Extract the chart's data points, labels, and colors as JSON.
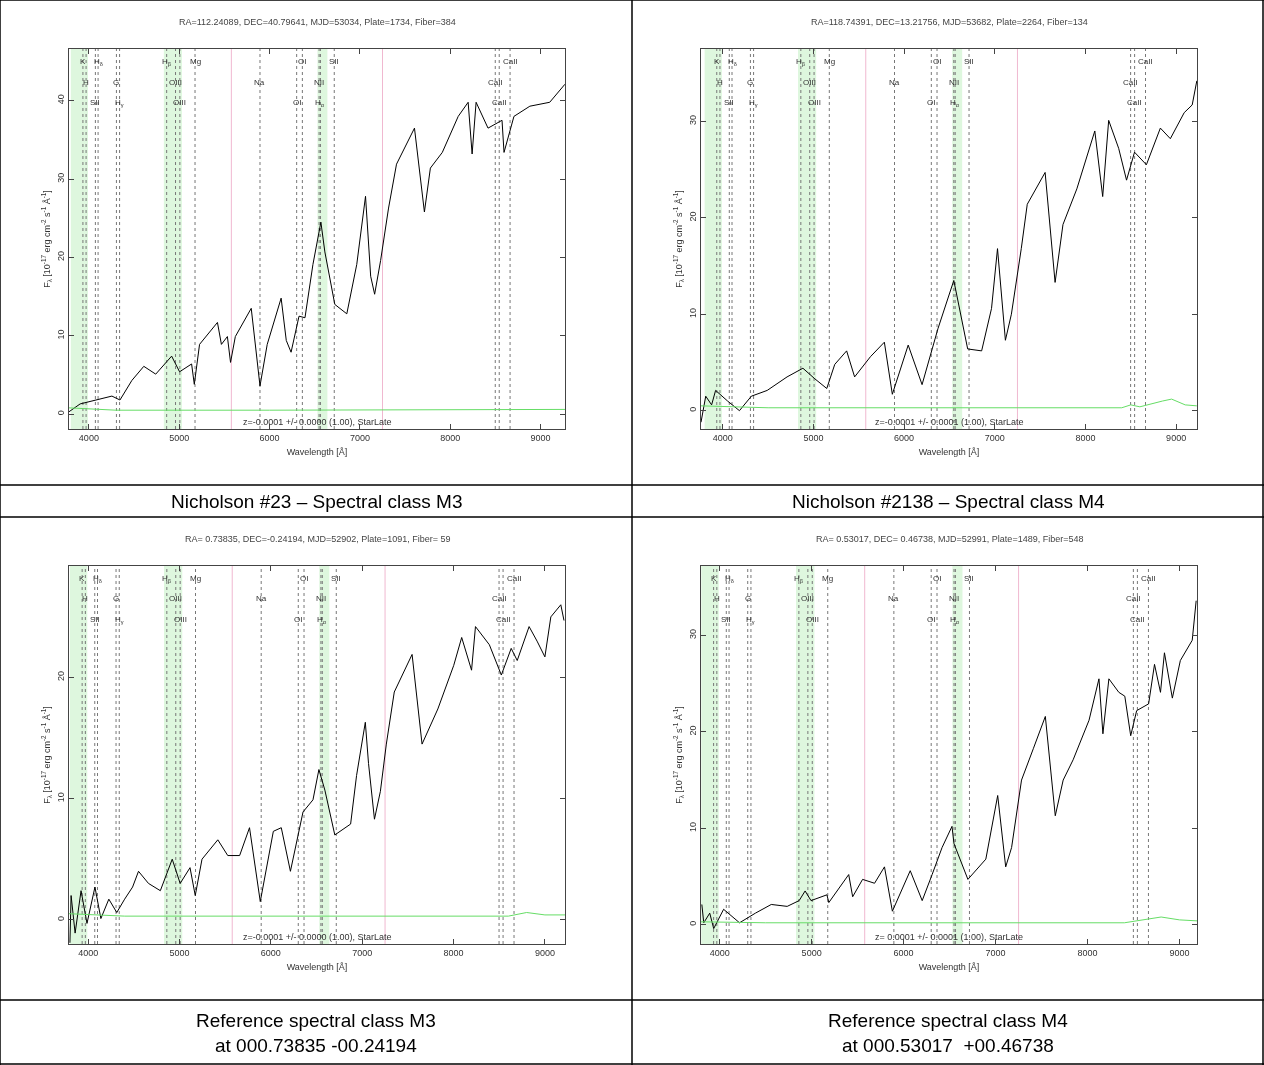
{
  "chart_data": [
    {
      "type": "line",
      "title": "RA=112.24089, DEC=40.79641, MJD=53034, Plate=1734, Fiber=384",
      "xlabel": "Wavelength [Å]",
      "ylabel": "F$_{λ}$ [10$^{-17}$ erg cm$^{-2}$ s$^{-1}$ Å$^{-1}$]",
      "annotations": [
        "z=-0.0001 +/- 0.0000 (1.00), StarLate",
        "Nicholson #23 – Spectral class M3"
      ],
      "xlim": [
        3780,
        9270
      ],
      "xticks": [
        4000,
        5000,
        6000,
        7000,
        8000,
        9000
      ],
      "ylim": [
        -1.9,
        46.6
      ],
      "yticks": [
        0,
        10,
        20,
        30,
        40
      ],
      "series": [
        {
          "color": "#000000",
          "x": [
            3780,
            3903,
            4079,
            4255,
            4344,
            4476,
            4608,
            4740,
            4916,
            5004,
            5137,
            5167,
            5225,
            5423,
            5467,
            5533,
            5568,
            5621,
            5797,
            5894,
            5974,
            6128,
            6185,
            6238,
            6326,
            6392,
            6480,
            6568,
            6612,
            6722,
            6855,
            6965,
            7062,
            7119,
            7163,
            7229,
            7317,
            7405,
            7604,
            7714,
            7780,
            7912,
            8088,
            8198,
            8242,
            8286,
            8418,
            8573,
            8595,
            8705,
            8881,
            9101,
            9269
          ],
          "values": [
            0.3,
            1.3,
            1.8,
            2.3,
            1.8,
            4.3,
            6.1,
            5.1,
            7.4,
            5.4,
            6.4,
            3.8,
            8.9,
            11.7,
            8.9,
            9.9,
            6.6,
            9.9,
            13.5,
            3.6,
            8.9,
            14.8,
            9.4,
            7.9,
            12.5,
            12.3,
            19.1,
            24.5,
            20.7,
            14.0,
            12.8,
            19.1,
            27.8,
            17.6,
            15.3,
            19.6,
            26.3,
            31.9,
            36.5,
            25.8,
            31.4,
            33.4,
            38.0,
            39.8,
            33.2,
            39.8,
            36.5,
            37.5,
            33.4,
            38.0,
            39.3,
            39.8,
            42.1
          ]
        },
        {
          "color": "#66dd66",
          "x": [
            3780,
            4300,
            6000,
            9270
          ],
          "values": [
            0.8,
            0.5,
            0.5,
            0.6
          ]
        }
      ],
      "bands": [
        {
          "axis": "x",
          "from": 3800,
          "to": 3990,
          "color": "#d6f5d6"
        },
        {
          "axis": "x",
          "from": 4830,
          "to": 5030,
          "color": "#d6f5d6"
        },
        {
          "axis": "x",
          "from": 6530,
          "to": 6640,
          "color": "#d6f5d6"
        }
      ],
      "ref_lines": [
        {
          "axis": "x",
          "value": 3934,
          "label": "K",
          "line_style": "dotted",
          "color": "#777777"
        },
        {
          "axis": "x",
          "value": 3969,
          "label": "H",
          "line_style": "dotted",
          "color": "#777777"
        },
        {
          "axis": "x",
          "value": 4072,
          "label": "SII",
          "line_style": "dotted",
          "color": "#777777"
        },
        {
          "axis": "x",
          "value": 4102,
          "label": "H$_{δ}$",
          "line_style": "dotted",
          "color": "#777777"
        },
        {
          "axis": "x",
          "value": 4305,
          "label": "G",
          "line_style": "dotted",
          "color": "#777777"
        },
        {
          "axis": "x",
          "value": 4340,
          "label": "H$_{γ}$",
          "line_style": "dotted",
          "color": "#777777"
        },
        {
          "axis": "x",
          "value": 4861,
          "label": "H$_{β}$",
          "line_style": "dotted",
          "color": "#777777"
        },
        {
          "axis": "x",
          "value": 4959,
          "label": "OIII",
          "line_style": "dotted",
          "color": "#777777"
        },
        {
          "axis": "x",
          "value": 5007,
          "label": "OIII",
          "line_style": "dotted",
          "color": "#777777"
        },
        {
          "axis": "x",
          "value": 5175,
          "label": "Mg",
          "line_style": "dotted",
          "color": "#777777"
        },
        {
          "axis": "x",
          "value": 5577,
          "line_style": "solid",
          "color": "#f0b8d0"
        },
        {
          "axis": "x",
          "value": 5894,
          "label": "Na",
          "line_style": "dotted",
          "color": "#777777"
        },
        {
          "axis": "x",
          "value": 6300,
          "label": "OI",
          "line_style": "dotted",
          "color": "#777777"
        },
        {
          "axis": "x",
          "value": 6363,
          "label": "OI",
          "line_style": "dotted",
          "color": "#777777"
        },
        {
          "axis": "x",
          "value": 6548,
          "label": "NII",
          "line_style": "dotted",
          "color": "#777777"
        },
        {
          "axis": "x",
          "value": 6563,
          "label": "H$_{α}$",
          "line_style": "dotted",
          "color": "#777777"
        },
        {
          "axis": "x",
          "value": 6716,
          "label": "SII",
          "line_style": "dotted",
          "color": "#777777"
        },
        {
          "axis": "x",
          "value": 7250,
          "line_style": "solid",
          "color": "#f0b8d0"
        },
        {
          "axis": "x",
          "value": 8498,
          "label": "CaII",
          "line_style": "dotted",
          "color": "#777777"
        },
        {
          "axis": "x",
          "value": 8542,
          "label": "CaII",
          "line_style": "dotted",
          "color": "#777777"
        },
        {
          "axis": "x",
          "value": 8662,
          "label": "CaII",
          "line_style": "dotted",
          "color": "#777777"
        }
      ]
    },
    {
      "type": "line",
      "title": "RA=118.74391, DEC=13.21756, MJD=53682, Plate=2264, Fiber=134",
      "xlabel": "Wavelength [Å]",
      "ylabel": "F$_{λ}$ [10$^{-17}$ erg cm$^{-2}$ s$^{-1}$ Å$^{-1}$]",
      "annotations": [
        "z=-0.0001 +/- 0.0001 (1.00), StarLate",
        "Nicholson #2138 – Spectral class M4"
      ],
      "xlim": [
        3760,
        9230
      ],
      "xticks": [
        4000,
        5000,
        6000,
        7000,
        8000,
        9000
      ],
      "ylim": [
        -1.9,
        37.5
      ],
      "yticks": [
        0,
        10,
        20,
        30
      ],
      "series": [
        {
          "color": "#000000",
          "x": [
            3760,
            3812,
            3877,
            3921,
            4053,
            4184,
            4315,
            4490,
            4709,
            4884,
            5016,
            5147,
            5235,
            5366,
            5454,
            5629,
            5782,
            5870,
            6045,
            6198,
            6373,
            6548,
            6701,
            6855,
            6964,
            7030,
            7117,
            7183,
            7292,
            7358,
            7555,
            7665,
            7752,
            7905,
            8103,
            8190,
            8256,
            8366,
            8453,
            8541,
            8672,
            8826,
            8936,
            9089,
            9177,
            9228
          ],
          "values": [
            -1.2,
            1.5,
            0.6,
            2.1,
            1.0,
            0,
            1.5,
            2.1,
            3.5,
            4.4,
            3.3,
            2.3,
            4.8,
            6.2,
            3.5,
            5.6,
            7.1,
            1.7,
            6.8,
            2.7,
            8.5,
            13.5,
            6.4,
            6.2,
            10.6,
            16.8,
            7.3,
            10.0,
            16.8,
            21.4,
            24.7,
            13.3,
            19.3,
            23.0,
            29.0,
            22.2,
            30.1,
            27.2,
            23.9,
            26.8,
            25.5,
            29.3,
            28.2,
            30.9,
            31.7,
            34.2
          ]
        },
        {
          "color": "#66dd66",
          "x": [
            3760,
            4500,
            8400,
            8500,
            8600,
            8850,
            8950,
            9100,
            9228
          ],
          "values": [
            0.5,
            0.3,
            0.3,
            0.6,
            0.4,
            1.0,
            1.2,
            0.6,
            0.5
          ]
        }
      ],
      "bands": [
        {
          "axis": "x",
          "from": 3800,
          "to": 3990,
          "color": "#d6f5d6"
        },
        {
          "axis": "x",
          "from": 4830,
          "to": 5030,
          "color": "#d6f5d6"
        },
        {
          "axis": "x",
          "from": 6530,
          "to": 6640,
          "color": "#d6f5d6"
        }
      ],
      "ref_lines": [
        {
          "axis": "x",
          "value": 3934,
          "label": "K",
          "line_style": "dotted",
          "color": "#777777"
        },
        {
          "axis": "x",
          "value": 3969,
          "label": "H",
          "line_style": "dotted",
          "color": "#777777"
        },
        {
          "axis": "x",
          "value": 4072,
          "label": "SII",
          "line_style": "dotted",
          "color": "#777777"
        },
        {
          "axis": "x",
          "value": 4102,
          "label": "H$_{δ}$",
          "line_style": "dotted",
          "color": "#777777"
        },
        {
          "axis": "x",
          "value": 4305,
          "label": "G",
          "line_style": "dotted",
          "color": "#777777"
        },
        {
          "axis": "x",
          "value": 4340,
          "label": "H$_{γ}$",
          "line_style": "dotted",
          "color": "#777777"
        },
        {
          "axis": "x",
          "value": 4861,
          "label": "H$_{β}$",
          "line_style": "dotted",
          "color": "#777777"
        },
        {
          "axis": "x",
          "value": 4959,
          "label": "OIII",
          "line_style": "dotted",
          "color": "#777777"
        },
        {
          "axis": "x",
          "value": 5007,
          "label": "OIII",
          "line_style": "dotted",
          "color": "#777777"
        },
        {
          "axis": "x",
          "value": 5175,
          "label": "Mg",
          "line_style": "dotted",
          "color": "#777777"
        },
        {
          "axis": "x",
          "value": 5577,
          "line_style": "solid",
          "color": "#f0b8d0"
        },
        {
          "axis": "x",
          "value": 5894,
          "label": "Na",
          "line_style": "dotted",
          "color": "#777777"
        },
        {
          "axis": "x",
          "value": 6300,
          "label": "OI",
          "line_style": "dotted",
          "color": "#777777"
        },
        {
          "axis": "x",
          "value": 6363,
          "label": "OI",
          "line_style": "dotted",
          "color": "#777777"
        },
        {
          "axis": "x",
          "value": 6548,
          "label": "NII",
          "line_style": "dotted",
          "color": "#777777"
        },
        {
          "axis": "x",
          "value": 6563,
          "label": "H$_{α}$",
          "line_style": "dotted",
          "color": "#777777"
        },
        {
          "axis": "x",
          "value": 6716,
          "label": "SII",
          "line_style": "dotted",
          "color": "#777777"
        },
        {
          "axis": "x",
          "value": 7250,
          "line_style": "solid",
          "color": "#f0b8d0"
        },
        {
          "axis": "x",
          "value": 8498,
          "label": "CaII",
          "line_style": "dotted",
          "color": "#777777"
        },
        {
          "axis": "x",
          "value": 8542,
          "label": "CaII",
          "line_style": "dotted",
          "color": "#777777"
        },
        {
          "axis": "x",
          "value": 8662,
          "label": "CaII",
          "line_style": "dotted",
          "color": "#777777"
        }
      ]
    },
    {
      "type": "line",
      "title": "RA= 0.73835, DEC=-0.24194, MJD=52902, Plate=1091, Fiber= 59",
      "xlabel": "Wavelength [Å]",
      "ylabel": "F$_{λ}$ [10$^{-17}$ erg cm$^{-2}$ s$^{-1}$ Å$^{-1}$]",
      "annotations": [
        "z=-0.0001 +/- 0.0000 (1.00), StarLate",
        "Reference spectral class M3\nat 000.73835 -00.24194"
      ],
      "xlim": [
        3790,
        9220
      ],
      "xticks": [
        4000,
        5000,
        6000,
        7000,
        8000,
        9000
      ],
      "ylim": [
        -2.0,
        29.2
      ],
      "yticks": [
        0,
        10,
        20
      ],
      "series": [
        {
          "color": "#000000",
          "x": [
            3800,
            3813,
            3857,
            3922,
            3987,
            4074,
            4139,
            4226,
            4313,
            4399,
            4486,
            4551,
            4660,
            4790,
            4920,
            5007,
            5115,
            5172,
            5246,
            5419,
            5528,
            5658,
            5766,
            5884,
            6027,
            6114,
            6214,
            6352,
            6461,
            6526,
            6591,
            6700,
            6873,
            6938,
            7034,
            7069,
            7134,
            7199,
            7264,
            7351,
            7546,
            7655,
            7828,
            8002,
            8089,
            8197,
            8240,
            8392,
            8523,
            8631,
            8697,
            8827,
            8914,
            9000,
            9065,
            9174,
            9209
          ],
          "values": [
            -1.9,
            2.0,
            -1.1,
            2.4,
            -0.3,
            2.7,
            0.1,
            1.7,
            0.6,
            1.7,
            2.7,
            4.0,
            3.0,
            2.4,
            5.0,
            3.0,
            4.3,
            2.0,
            5.0,
            6.6,
            5.3,
            5.3,
            7.6,
            1.5,
            7.3,
            7.6,
            4.0,
            8.9,
            9.9,
            12.4,
            10.7,
            7.0,
            7.9,
            11.9,
            16.3,
            12.9,
            8.3,
            10.6,
            14.5,
            18.8,
            21.9,
            14.5,
            17.4,
            21.0,
            23.3,
            20.6,
            24.2,
            22.7,
            20.2,
            22.4,
            21.4,
            24.2,
            23.0,
            21.7,
            25.0,
            26.0,
            24.7
          ]
        },
        {
          "color": "#66dd66",
          "x": [
            3790,
            4400,
            8600,
            8800,
            9000,
            9220
          ],
          "values": [
            0.5,
            0.3,
            0.3,
            0.6,
            0.4,
            0.4
          ]
        }
      ],
      "bands": [
        {
          "axis": "x",
          "from": 3800,
          "to": 3990,
          "color": "#d6f5d6"
        },
        {
          "axis": "x",
          "from": 4830,
          "to": 5030,
          "color": "#d6f5d6"
        },
        {
          "axis": "x",
          "from": 6530,
          "to": 6640,
          "color": "#d6f5d6"
        }
      ],
      "ref_lines": [
        {
          "axis": "x",
          "value": 3934,
          "label": "K",
          "line_style": "dotted",
          "color": "#777777"
        },
        {
          "axis": "x",
          "value": 3969,
          "label": "H",
          "line_style": "dotted",
          "color": "#777777"
        },
        {
          "axis": "x",
          "value": 4072,
          "label": "SII",
          "line_style": "dotted",
          "color": "#777777"
        },
        {
          "axis": "x",
          "value": 4102,
          "label": "H$_{δ}$",
          "line_style": "dotted",
          "color": "#777777"
        },
        {
          "axis": "x",
          "value": 4305,
          "label": "G",
          "line_style": "dotted",
          "color": "#777777"
        },
        {
          "axis": "x",
          "value": 4340,
          "label": "H$_{γ}$",
          "line_style": "dotted",
          "color": "#777777"
        },
        {
          "axis": "x",
          "value": 4861,
          "label": "H$_{β}$",
          "line_style": "dotted",
          "color": "#777777"
        },
        {
          "axis": "x",
          "value": 4959,
          "label": "OIII",
          "line_style": "dotted",
          "color": "#777777"
        },
        {
          "axis": "x",
          "value": 5007,
          "label": "OIII",
          "line_style": "dotted",
          "color": "#777777"
        },
        {
          "axis": "x",
          "value": 5175,
          "label": "Mg",
          "line_style": "dotted",
          "color": "#777777"
        },
        {
          "axis": "x",
          "value": 5577,
          "line_style": "solid",
          "color": "#f0b8d0"
        },
        {
          "axis": "x",
          "value": 5894,
          "label": "Na",
          "line_style": "dotted",
          "color": "#777777"
        },
        {
          "axis": "x",
          "value": 6300,
          "label": "OI",
          "line_style": "dotted",
          "color": "#777777"
        },
        {
          "axis": "x",
          "value": 6363,
          "label": "OI",
          "line_style": "dotted",
          "color": "#777777"
        },
        {
          "axis": "x",
          "value": 6548,
          "label": "NII",
          "line_style": "dotted",
          "color": "#777777"
        },
        {
          "axis": "x",
          "value": 6563,
          "label": "H$_{α}$",
          "line_style": "dotted",
          "color": "#777777"
        },
        {
          "axis": "x",
          "value": 6716,
          "label": "SII",
          "line_style": "dotted",
          "color": "#777777"
        },
        {
          "axis": "x",
          "value": 7250,
          "line_style": "solid",
          "color": "#f0b8d0"
        },
        {
          "axis": "x",
          "value": 8498,
          "label": "CaII",
          "line_style": "dotted",
          "color": "#777777"
        },
        {
          "axis": "x",
          "value": 8542,
          "label": "CaII",
          "line_style": "dotted",
          "color": "#777777"
        },
        {
          "axis": "x",
          "value": 8662,
          "label": "CaII",
          "line_style": "dotted",
          "color": "#777777"
        }
      ]
    },
    {
      "type": "line",
      "title": "RA= 0.53017, DEC= 0.46738, MJD=52991, Plate=1489, Fiber=548",
      "xlabel": "Wavelength [Å]",
      "ylabel": "F$_{λ}$ [10$^{-17}$ erg cm$^{-2}$ s$^{-1}$ Å$^{-1}$]",
      "annotations": [
        "z= 0.0001 +/- 0.0001 (1.00), StarLate",
        "Reference spectral class M4\nat 000.53017  +00.46738"
      ],
      "xlim": [
        3797,
        9190
      ],
      "xticks": [
        4000,
        5000,
        6000,
        7000,
        8000,
        9000
      ],
      "ylim": [
        -2.0,
        37.2
      ],
      "yticks": [
        0,
        10,
        20,
        30
      ],
      "series": [
        {
          "color": "#000000",
          "x": [
            3806,
            3827,
            3892,
            3935,
            4043,
            4216,
            4389,
            4561,
            4734,
            4864,
            4929,
            4993,
            5166,
            5187,
            5403,
            5446,
            5554,
            5684,
            5792,
            5878,
            6072,
            6202,
            6310,
            6418,
            6526,
            6548,
            6699,
            6894,
            7023,
            7110,
            7174,
            7282,
            7412,
            7541,
            7649,
            7735,
            7843,
            8016,
            8124,
            8167,
            8232,
            8340,
            8405,
            8469,
            8534,
            8664,
            8728,
            8793,
            8836,
            8922,
            9009,
            9138,
            9181
          ],
          "values": [
            2.1,
            0.2,
            1.2,
            -0.4,
            1.6,
            0.2,
            1.2,
            2.1,
            1.9,
            2.5,
            3.5,
            2.5,
            3.1,
            2.3,
            5.2,
            2.9,
            4.7,
            4.3,
            6.0,
            1.4,
            5.6,
            2.5,
            5.2,
            8.0,
            10.2,
            8.4,
            4.7,
            6.8,
            13.4,
            6.0,
            8.0,
            15.0,
            18.3,
            21.6,
            11.3,
            15.0,
            17.1,
            21.2,
            25.5,
            19.8,
            25.5,
            24.1,
            23.7,
            19.6,
            22.2,
            22.9,
            27.0,
            24.1,
            28.2,
            23.5,
            27.4,
            29.5,
            33.6
          ]
        },
        {
          "color": "#66dd66",
          "x": [
            3797,
            4500,
            8400,
            8800,
            9000,
            9190
          ],
          "values": [
            0.3,
            0.2,
            0.2,
            0.8,
            0.5,
            0.4
          ]
        }
      ],
      "bands": [
        {
          "axis": "x",
          "from": 3800,
          "to": 3990,
          "color": "#d6f5d6"
        },
        {
          "axis": "x",
          "from": 4830,
          "to": 5030,
          "color": "#d6f5d6"
        },
        {
          "axis": "x",
          "from": 6530,
          "to": 6640,
          "color": "#d6f5d6"
        }
      ],
      "ref_lines": [
        {
          "axis": "x",
          "value": 3934,
          "label": "K",
          "line_style": "dotted",
          "color": "#777777"
        },
        {
          "axis": "x",
          "value": 3969,
          "label": "H",
          "line_style": "dotted",
          "color": "#777777"
        },
        {
          "axis": "x",
          "value": 4072,
          "label": "SII",
          "line_style": "dotted",
          "color": "#777777"
        },
        {
          "axis": "x",
          "value": 4102,
          "label": "H$_{δ}$",
          "line_style": "dotted",
          "color": "#777777"
        },
        {
          "axis": "x",
          "value": 4305,
          "label": "G",
          "line_style": "dotted",
          "color": "#777777"
        },
        {
          "axis": "x",
          "value": 4340,
          "label": "H$_{γ}$",
          "line_style": "dotted",
          "color": "#777777"
        },
        {
          "axis": "x",
          "value": 4861,
          "label": "H$_{β}$",
          "line_style": "dotted",
          "color": "#777777"
        },
        {
          "axis": "x",
          "value": 4959,
          "label": "OIII",
          "line_style": "dotted",
          "color": "#777777"
        },
        {
          "axis": "x",
          "value": 5007,
          "label": "OIII",
          "line_style": "dotted",
          "color": "#777777"
        },
        {
          "axis": "x",
          "value": 5175,
          "label": "Mg",
          "line_style": "dotted",
          "color": "#777777"
        },
        {
          "axis": "x",
          "value": 5577,
          "line_style": "solid",
          "color": "#f0b8d0"
        },
        {
          "axis": "x",
          "value": 5894,
          "label": "Na",
          "line_style": "dotted",
          "color": "#777777"
        },
        {
          "axis": "x",
          "value": 6300,
          "label": "OI",
          "line_style": "dotted",
          "color": "#777777"
        },
        {
          "axis": "x",
          "value": 6363,
          "label": "OI",
          "line_style": "dotted",
          "color": "#777777"
        },
        {
          "axis": "x",
          "value": 6548,
          "label": "NII",
          "line_style": "dotted",
          "color": "#777777"
        },
        {
          "axis": "x",
          "value": 6563,
          "label": "H$_{α}$",
          "line_style": "dotted",
          "color": "#777777"
        },
        {
          "axis": "x",
          "value": 6716,
          "label": "SII",
          "line_style": "dotted",
          "color": "#777777"
        },
        {
          "axis": "x",
          "value": 7250,
          "line_style": "solid",
          "color": "#f0b8d0"
        },
        {
          "axis": "x",
          "value": 8498,
          "label": "CaII",
          "line_style": "dotted",
          "color": "#777777"
        },
        {
          "axis": "x",
          "value": 8542,
          "label": "CaII",
          "line_style": "dotted",
          "color": "#777777"
        },
        {
          "axis": "x",
          "value": 8662,
          "label": "CaII",
          "line_style": "dotted",
          "color": "#777777"
        }
      ]
    }
  ]
}
